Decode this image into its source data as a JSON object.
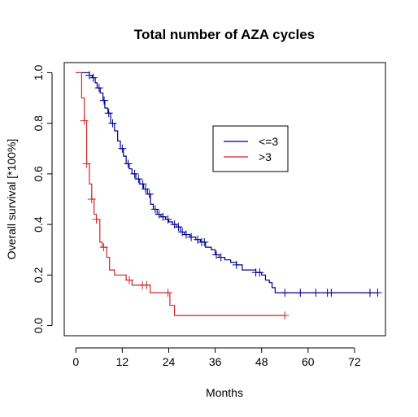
{
  "chart_data": {
    "type": "line",
    "title": "Total number of AZA cycles",
    "xlabel": "Months",
    "ylabel": "Overall survival [*100%]",
    "xlim": [
      -3,
      80
    ],
    "ylim": [
      -0.04,
      1.04
    ],
    "x_ticks": [
      0,
      12,
      24,
      36,
      48,
      60,
      72
    ],
    "y_ticks": [
      0.0,
      0.2,
      0.4,
      0.6,
      0.8,
      1.0
    ],
    "x_tick_labels": [
      "0",
      "12",
      "24",
      "36",
      "48",
      "60",
      "72"
    ],
    "y_tick_labels": [
      "0.0",
      "0.2",
      "0.4",
      "0.6",
      "0.8",
      "1.0"
    ],
    "legend_position": "top-right",
    "series": [
      {
        "name": "<=3",
        "color": "#00008B",
        "step_points": [
          [
            0,
            1.0
          ],
          [
            3.5,
            1.0
          ],
          [
            3.5,
            0.99
          ],
          [
            4.2,
            0.99
          ],
          [
            4.2,
            0.98
          ],
          [
            5,
            0.98
          ],
          [
            5,
            0.96
          ],
          [
            5.5,
            0.96
          ],
          [
            5.5,
            0.94
          ],
          [
            6.3,
            0.94
          ],
          [
            6.3,
            0.92
          ],
          [
            7,
            0.92
          ],
          [
            7,
            0.89
          ],
          [
            7.5,
            0.89
          ],
          [
            7.5,
            0.86
          ],
          [
            8.3,
            0.86
          ],
          [
            8.3,
            0.84
          ],
          [
            9,
            0.84
          ],
          [
            9,
            0.8
          ],
          [
            10,
            0.8
          ],
          [
            10,
            0.77
          ],
          [
            10.8,
            0.77
          ],
          [
            10.8,
            0.73
          ],
          [
            11.5,
            0.73
          ],
          [
            11.5,
            0.7
          ],
          [
            12.3,
            0.7
          ],
          [
            12.3,
            0.67
          ],
          [
            13,
            0.67
          ],
          [
            13,
            0.64
          ],
          [
            13.8,
            0.64
          ],
          [
            13.8,
            0.62
          ],
          [
            14.5,
            0.62
          ],
          [
            14.5,
            0.6
          ],
          [
            15.5,
            0.6
          ],
          [
            15.5,
            0.58
          ],
          [
            16.5,
            0.58
          ],
          [
            16.5,
            0.56
          ],
          [
            17.5,
            0.56
          ],
          [
            17.5,
            0.54
          ],
          [
            18.5,
            0.54
          ],
          [
            18.5,
            0.52
          ],
          [
            19.3,
            0.52
          ],
          [
            19.3,
            0.48
          ],
          [
            20,
            0.48
          ],
          [
            20,
            0.46
          ],
          [
            21,
            0.46
          ],
          [
            21,
            0.44
          ],
          [
            22,
            0.44
          ],
          [
            22,
            0.43
          ],
          [
            23.2,
            0.43
          ],
          [
            23.2,
            0.42
          ],
          [
            24,
            0.42
          ],
          [
            24,
            0.41
          ],
          [
            25,
            0.41
          ],
          [
            25,
            0.4
          ],
          [
            26,
            0.4
          ],
          [
            26,
            0.39
          ],
          [
            27,
            0.39
          ],
          [
            27,
            0.37
          ],
          [
            28,
            0.37
          ],
          [
            28,
            0.36
          ],
          [
            29.5,
            0.36
          ],
          [
            29.5,
            0.35
          ],
          [
            31,
            0.35
          ],
          [
            31,
            0.34
          ],
          [
            32.2,
            0.34
          ],
          [
            32.2,
            0.33
          ],
          [
            33.5,
            0.33
          ],
          [
            33.5,
            0.31
          ],
          [
            35,
            0.31
          ],
          [
            35,
            0.3
          ],
          [
            36,
            0.3
          ],
          [
            36,
            0.28
          ],
          [
            37,
            0.28
          ],
          [
            37,
            0.27
          ],
          [
            38.5,
            0.27
          ],
          [
            38.5,
            0.26
          ],
          [
            40,
            0.26
          ],
          [
            40,
            0.25
          ],
          [
            41.5,
            0.25
          ],
          [
            41.5,
            0.24
          ],
          [
            43,
            0.24
          ],
          [
            43,
            0.22
          ],
          [
            46.5,
            0.22
          ],
          [
            46.5,
            0.21
          ],
          [
            48,
            0.21
          ],
          [
            48,
            0.2
          ],
          [
            49,
            0.2
          ],
          [
            49,
            0.18
          ],
          [
            50,
            0.18
          ],
          [
            50,
            0.17
          ],
          [
            50.7,
            0.17
          ],
          [
            50.7,
            0.15
          ],
          [
            51.5,
            0.15
          ],
          [
            51.5,
            0.13
          ],
          [
            78,
            0.13
          ]
        ],
        "censor_x": [
          3.5,
          4.5,
          6,
          7.3,
          8.5,
          9.5,
          12,
          13.5,
          15.2,
          16.2,
          17.3,
          18,
          19,
          20.5,
          21.5,
          22.5,
          23.8,
          25.5,
          26.5,
          27.5,
          28.5,
          29.8,
          31.5,
          32.5,
          33.2,
          36.3,
          37.5,
          41.5,
          46.5,
          47.5,
          54,
          58,
          62,
          65,
          66,
          76,
          78
        ]
      },
      {
        "name": ">3",
        "color": "#CD2626",
        "step_points": [
          [
            0,
            1.0
          ],
          [
            1.5,
            1.0
          ],
          [
            1.5,
            0.9
          ],
          [
            2.2,
            0.9
          ],
          [
            2.2,
            0.81
          ],
          [
            2.8,
            0.81
          ],
          [
            2.8,
            0.64
          ],
          [
            3.5,
            0.64
          ],
          [
            3.5,
            0.56
          ],
          [
            4.1,
            0.56
          ],
          [
            4.1,
            0.5
          ],
          [
            4.7,
            0.5
          ],
          [
            4.7,
            0.44
          ],
          [
            5.3,
            0.44
          ],
          [
            5.3,
            0.42
          ],
          [
            6.2,
            0.42
          ],
          [
            6.2,
            0.33
          ],
          [
            6.8,
            0.33
          ],
          [
            6.8,
            0.31
          ],
          [
            8,
            0.31
          ],
          [
            8,
            0.27
          ],
          [
            8.7,
            0.27
          ],
          [
            8.7,
            0.22
          ],
          [
            10,
            0.22
          ],
          [
            10,
            0.2
          ],
          [
            13,
            0.2
          ],
          [
            13,
            0.18
          ],
          [
            14.5,
            0.18
          ],
          [
            14.5,
            0.16
          ],
          [
            19.2,
            0.16
          ],
          [
            19.2,
            0.13
          ],
          [
            24.3,
            0.13
          ],
          [
            24.3,
            0.08
          ],
          [
            25.5,
            0.08
          ],
          [
            25.5,
            0.04
          ],
          [
            54,
            0.04
          ]
        ],
        "censor_x": [
          2.2,
          2.8,
          4.1,
          5.3,
          7.2,
          13.8,
          17.2,
          18.3,
          23.8,
          54
        ]
      }
    ]
  }
}
